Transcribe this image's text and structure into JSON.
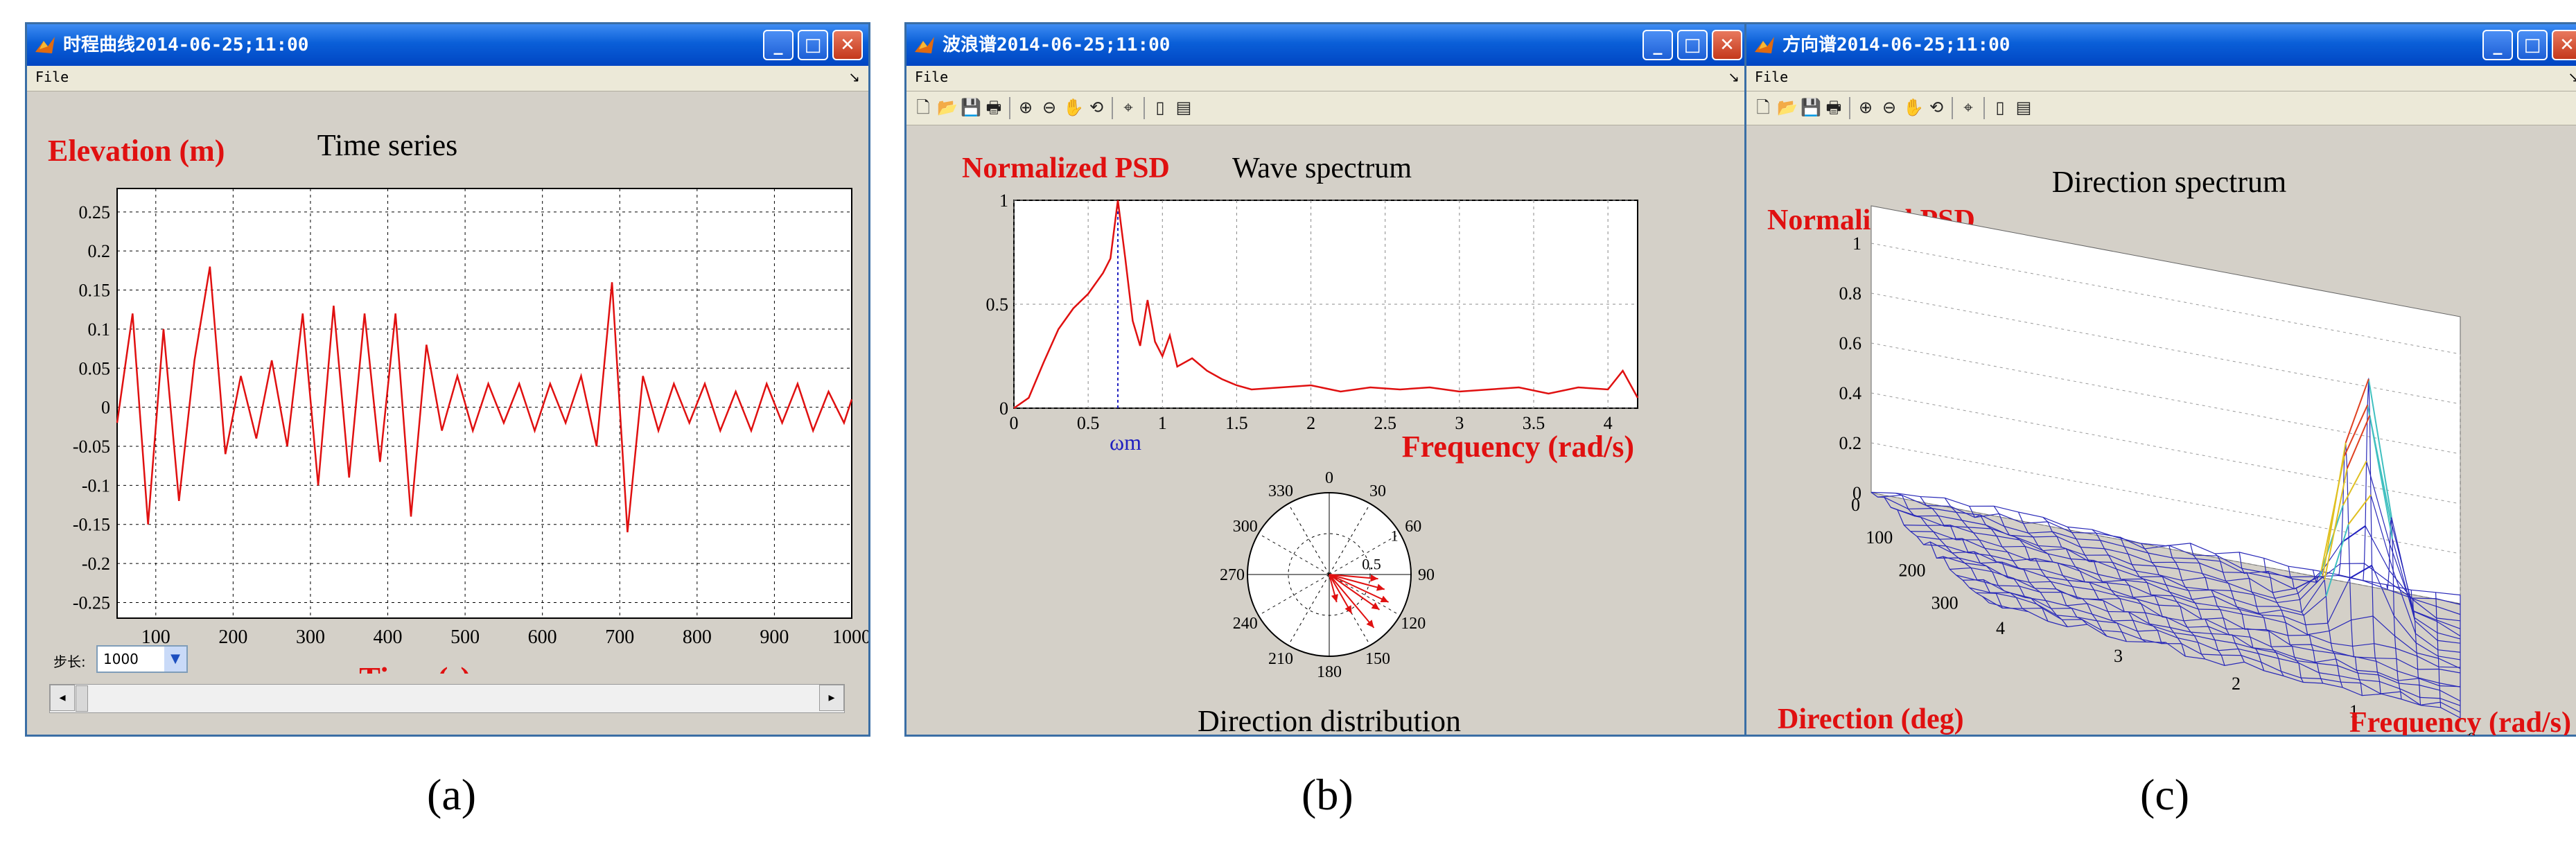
{
  "windows": {
    "a": {
      "title": "时程曲线2014-06-25;11:00",
      "menu_file": "File",
      "plot_title": "Time series",
      "ylabel": "Elevation (m)",
      "xlabel": "Time (s)",
      "stepper_label": "步长:",
      "stepper_value": "1000"
    },
    "b": {
      "title": "波浪谱2014-06-25;11:00",
      "menu_file": "File",
      "plot_title": "Wave spectrum",
      "ylabel": "Normalized PSD",
      "xlabel": "Frequency (rad/s)",
      "omega_label": "ωm",
      "polar_title": "Direction distribution"
    },
    "c": {
      "title": "方向谱2014-06-25;11:00",
      "menu_file": "File",
      "plot_title": "Direction spectrum",
      "zlabel": "Normalized PSD",
      "dir_label": "Direction (deg)",
      "freq_label": "Frequency (rad/s)"
    }
  },
  "captions": {
    "a": "(a)",
    "b": "(b)",
    "c": "(c)"
  },
  "colors": {
    "title_bar": "#0a5fd8",
    "window_bg": "#d4d0c8",
    "red_series": "#e01010",
    "accent_blue": "#2020c0"
  },
  "chart_data": [
    {
      "type": "line",
      "title": "Time series",
      "xlabel": "Time (s)",
      "ylabel": "Elevation (m)",
      "xlim": [
        50,
        1000
      ],
      "ylim": [
        -0.27,
        0.28
      ],
      "xticks": [
        100,
        200,
        300,
        400,
        500,
        600,
        700,
        800,
        900,
        1000
      ],
      "yticks": [
        -0.25,
        -0.2,
        -0.15,
        -0.1,
        -0.05,
        0,
        0.05,
        0.1,
        0.15,
        0.2,
        0.25
      ],
      "series": [
        {
          "color": "#e01010",
          "x": [
            50,
            70,
            90,
            110,
            130,
            150,
            170,
            190,
            210,
            230,
            250,
            270,
            290,
            310,
            330,
            350,
            370,
            390,
            410,
            430,
            450,
            470,
            490,
            510,
            530,
            550,
            570,
            590,
            610,
            630,
            650,
            670,
            690,
            710,
            730,
            750,
            770,
            790,
            810,
            830,
            850,
            870,
            890,
            910,
            930,
            950,
            970,
            990,
            1000
          ],
          "y": [
            -0.02,
            0.12,
            -0.15,
            0.1,
            -0.12,
            0.06,
            0.18,
            -0.06,
            0.04,
            -0.04,
            0.06,
            -0.05,
            0.12,
            -0.1,
            0.13,
            -0.09,
            0.12,
            -0.07,
            0.12,
            -0.14,
            0.08,
            -0.03,
            0.04,
            -0.03,
            0.03,
            -0.02,
            0.03,
            -0.03,
            0.03,
            -0.02,
            0.04,
            -0.05,
            0.16,
            -0.16,
            0.04,
            -0.03,
            0.03,
            -0.02,
            0.03,
            -0.03,
            0.02,
            -0.03,
            0.03,
            -0.02,
            0.03,
            -0.03,
            0.02,
            -0.02,
            0.01
          ]
        }
      ]
    },
    {
      "type": "line",
      "title": "Wave spectrum",
      "xlabel": "Frequency (rad/s)",
      "ylabel": "Normalized PSD",
      "xlim": [
        0,
        4.2
      ],
      "ylim": [
        0,
        1
      ],
      "xticks": [
        0,
        0.5,
        1,
        1.5,
        2,
        2.5,
        3,
        3.5,
        4
      ],
      "yticks": [
        0,
        0.5,
        1
      ],
      "series": [
        {
          "color": "#e01010",
          "x": [
            0,
            0.1,
            0.2,
            0.3,
            0.4,
            0.5,
            0.55,
            0.6,
            0.65,
            0.7,
            0.75,
            0.8,
            0.85,
            0.9,
            0.95,
            1.0,
            1.05,
            1.1,
            1.2,
            1.3,
            1.4,
            1.5,
            1.6,
            1.8,
            2.0,
            2.2,
            2.4,
            2.6,
            2.8,
            3.0,
            3.2,
            3.4,
            3.6,
            3.8,
            4.0,
            4.1,
            4.2
          ],
          "y": [
            0,
            0.05,
            0.22,
            0.38,
            0.48,
            0.55,
            0.6,
            0.65,
            0.72,
            1.0,
            0.72,
            0.42,
            0.3,
            0.52,
            0.32,
            0.25,
            0.35,
            0.2,
            0.24,
            0.18,
            0.14,
            0.11,
            0.09,
            0.1,
            0.11,
            0.08,
            0.1,
            0.09,
            0.1,
            0.08,
            0.09,
            0.1,
            0.07,
            0.1,
            0.09,
            0.18,
            0.05
          ]
        }
      ],
      "peak_marker_x": 0.7
    },
    {
      "type": "polar",
      "title": "Direction distribution",
      "angle_labels": [
        "0",
        "30",
        "60",
        "90",
        "120",
        "150",
        "180",
        "210",
        "240",
        "270",
        "300",
        "330"
      ],
      "radial_labels": [
        "0.5",
        "1"
      ],
      "vectors": [
        {
          "deg": 95,
          "r": 0.6
        },
        {
          "deg": 105,
          "r": 0.7
        },
        {
          "deg": 115,
          "r": 0.8
        },
        {
          "deg": 125,
          "r": 0.75
        },
        {
          "deg": 140,
          "r": 0.85
        },
        {
          "deg": 150,
          "r": 0.55
        },
        {
          "deg": 165,
          "r": 0.35
        }
      ]
    },
    {
      "type": "surface",
      "title": "Direction spectrum",
      "xlabel": "Frequency (rad/s)",
      "ylabel": "Direction (deg)",
      "zlabel": "Normalized PSD",
      "zticks": [
        0,
        0.2,
        0.4,
        0.6,
        0.8,
        1
      ],
      "freq_ticks": [
        0,
        1,
        2,
        3,
        4
      ],
      "dir_ticks": [
        0,
        100,
        200,
        300
      ]
    }
  ]
}
